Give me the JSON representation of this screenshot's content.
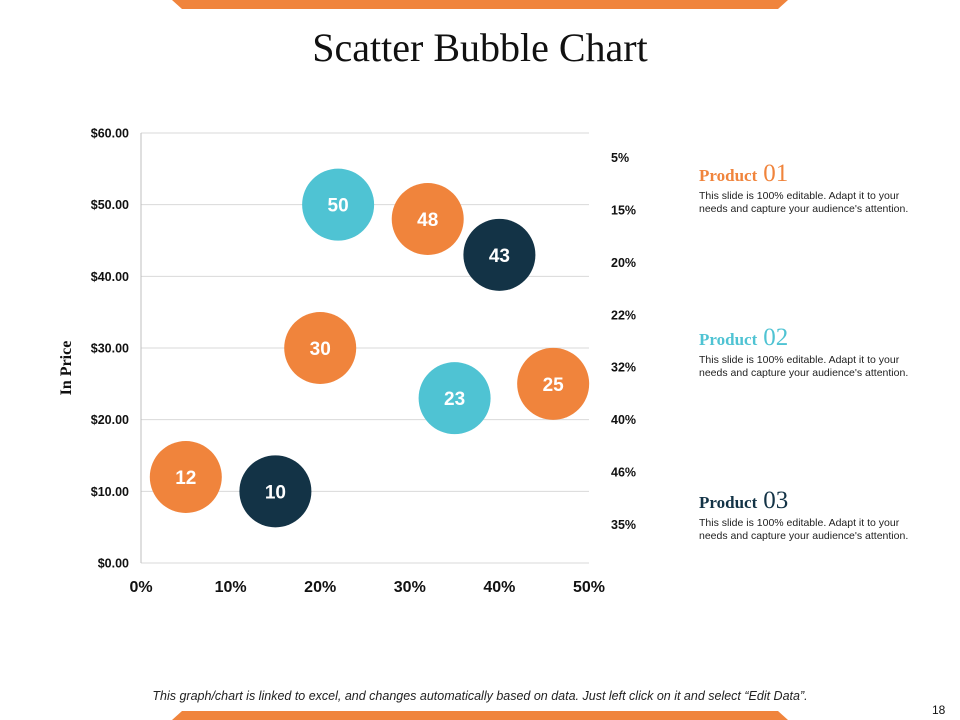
{
  "slide": {
    "title": "Scatter Bubble Chart",
    "footnote": "This graph/chart is linked to excel, and changes automatically based on data. Just left click on it and select “Edit Data”.",
    "page_number": "18"
  },
  "colors": {
    "orange": "#f0843c",
    "teal": "#4fc3d3",
    "navy": "#133346",
    "accent_bar": "#f0843c"
  },
  "chart_data": {
    "type": "scatter",
    "title": "",
    "xlabel": "",
    "ylabel": "In Price",
    "xlim": [
      0,
      50
    ],
    "ylim": [
      0,
      60
    ],
    "x_tick_labels": [
      "0%",
      "10%",
      "20%",
      "30%",
      "40%",
      "50%"
    ],
    "y_tick_labels": [
      "$0.00",
      "$10.00",
      "$20.00",
      "$30.00",
      "$40.00",
      "$50.00",
      "$60.00"
    ],
    "secondary_labels": [
      "5%",
      "15%",
      "20%",
      "22%",
      "32%",
      "40%",
      "46%",
      "35%"
    ],
    "grid": true,
    "series": [
      {
        "name": "Product 01",
        "color": "#f0843c",
        "points": [
          {
            "x": 5,
            "y": 12,
            "label": "12"
          },
          {
            "x": 20,
            "y": 30,
            "label": "30"
          },
          {
            "x": 32,
            "y": 48,
            "label": "48"
          },
          {
            "x": 46,
            "y": 25,
            "label": "25"
          }
        ]
      },
      {
        "name": "Product 02",
        "color": "#4fc3d3",
        "points": [
          {
            "x": 22,
            "y": 50,
            "label": "50"
          },
          {
            "x": 35,
            "y": 23,
            "label": "23"
          }
        ]
      },
      {
        "name": "Product 03",
        "color": "#133346",
        "points": [
          {
            "x": 15,
            "y": 10,
            "label": "10"
          },
          {
            "x": 40,
            "y": 43,
            "label": "43"
          }
        ]
      }
    ]
  },
  "products": [
    {
      "name": "Product",
      "number": "01",
      "color": "#f0843c",
      "description": "This slide is 100% editable. Adapt it to your needs and capture your audience's attention."
    },
    {
      "name": "Product",
      "number": "02",
      "color": "#4fc3d3",
      "description": "This slide is 100% editable. Adapt it to your needs and capture your audience's attention."
    },
    {
      "name": "Product",
      "number": "03",
      "color": "#133346",
      "description": "This slide is 100% editable. Adapt it to your needs and capture your audience's attention."
    }
  ]
}
